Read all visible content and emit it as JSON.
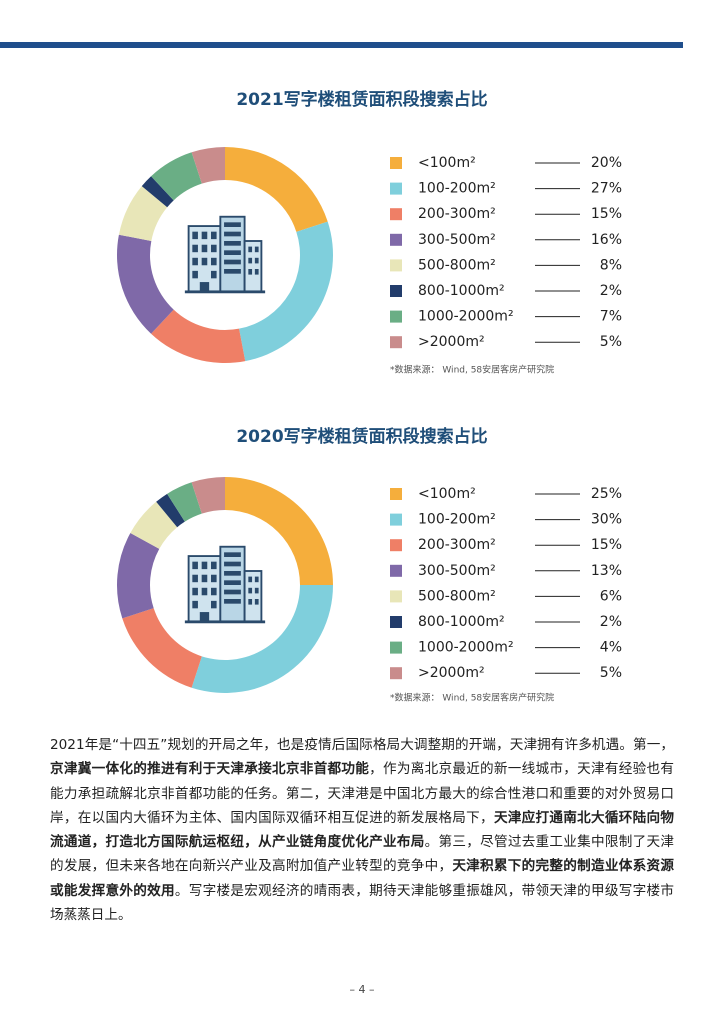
{
  "chart_data": [
    {
      "type": "pie",
      "title": "2021写字楼租赁面积段搜索占比",
      "categories": [
        "<100m²",
        "100-200m²",
        "200-300m²",
        "300-500m²",
        "500-800m²",
        "800-1000m²",
        "1000-2000m²",
        ">2000m²"
      ],
      "values": [
        20,
        27,
        15,
        16,
        8,
        2,
        7,
        5
      ],
      "value_labels": [
        "20%",
        "27%",
        "15%",
        "16%",
        "8%",
        "2%",
        "7%",
        "5%"
      ],
      "colors": [
        "#f5ae3c",
        "#7fcfdc",
        "#ef7f66",
        "#7f69a8",
        "#e8e6b8",
        "#223c6b",
        "#6aae85",
        "#c98c8c"
      ],
      "note": "*数据来源： Wind, 58安居客房产研究院"
    },
    {
      "type": "pie",
      "title": "2020写字楼租赁面积段搜索占比",
      "categories": [
        "<100m²",
        "100-200m²",
        "200-300m²",
        "300-500m²",
        "500-800m²",
        "800-1000m²",
        "1000-2000m²",
        ">2000m²"
      ],
      "values": [
        25,
        30,
        15,
        13,
        6,
        2,
        4,
        5
      ],
      "value_labels": [
        "25%",
        "30%",
        "15%",
        "13%",
        "6%",
        "2%",
        "4%",
        "5%"
      ],
      "colors": [
        "#f5ae3c",
        "#7fcfdc",
        "#ef7f66",
        "#7f69a8",
        "#e8e6b8",
        "#223c6b",
        "#6aae85",
        "#c98c8c"
      ],
      "note": "*数据来源： Wind, 58安居客房产研究院"
    }
  ],
  "paragraph": [
    {
      "text": "2021年是“十四五”规划的开局之年，也是疫情后国际格局大调整期的开端，天津拥有许多机遇。第一，",
      "bold": false
    },
    {
      "text": "京津冀一体化的推进有利于天津承接北京非首都功能",
      "bold": true
    },
    {
      "text": "，作为离北京最近的新一线城市，天津有经验也有能力承担疏解北京非首都功能的任务。第二，天津港是中国北方最大的综合性港口和重要的对外贸易口岸，在以国内大循环为主体、国内国际双循环相互促进的新发展格局下，",
      "bold": false
    },
    {
      "text": "天津应打通南北大循环陆向物流通道，打造北方国际航运枢纽，从产业链角度优化产业布局",
      "bold": true
    },
    {
      "text": "。第三，尽管过去重工业集中限制了天津的发展，但未来各地在向新兴产业及高附加值产业转型的竞争中，",
      "bold": false
    },
    {
      "text": "天津积累下的完整的制造业体系资源或能发挥意外的效用",
      "bold": true
    },
    {
      "text": "。写字楼是宏观经济的晴雨表，期待天津能够重振雄风，带领天津的甲级写字楼市场蒸蒸日上。",
      "bold": false
    }
  ],
  "page_number": "– 4 –"
}
